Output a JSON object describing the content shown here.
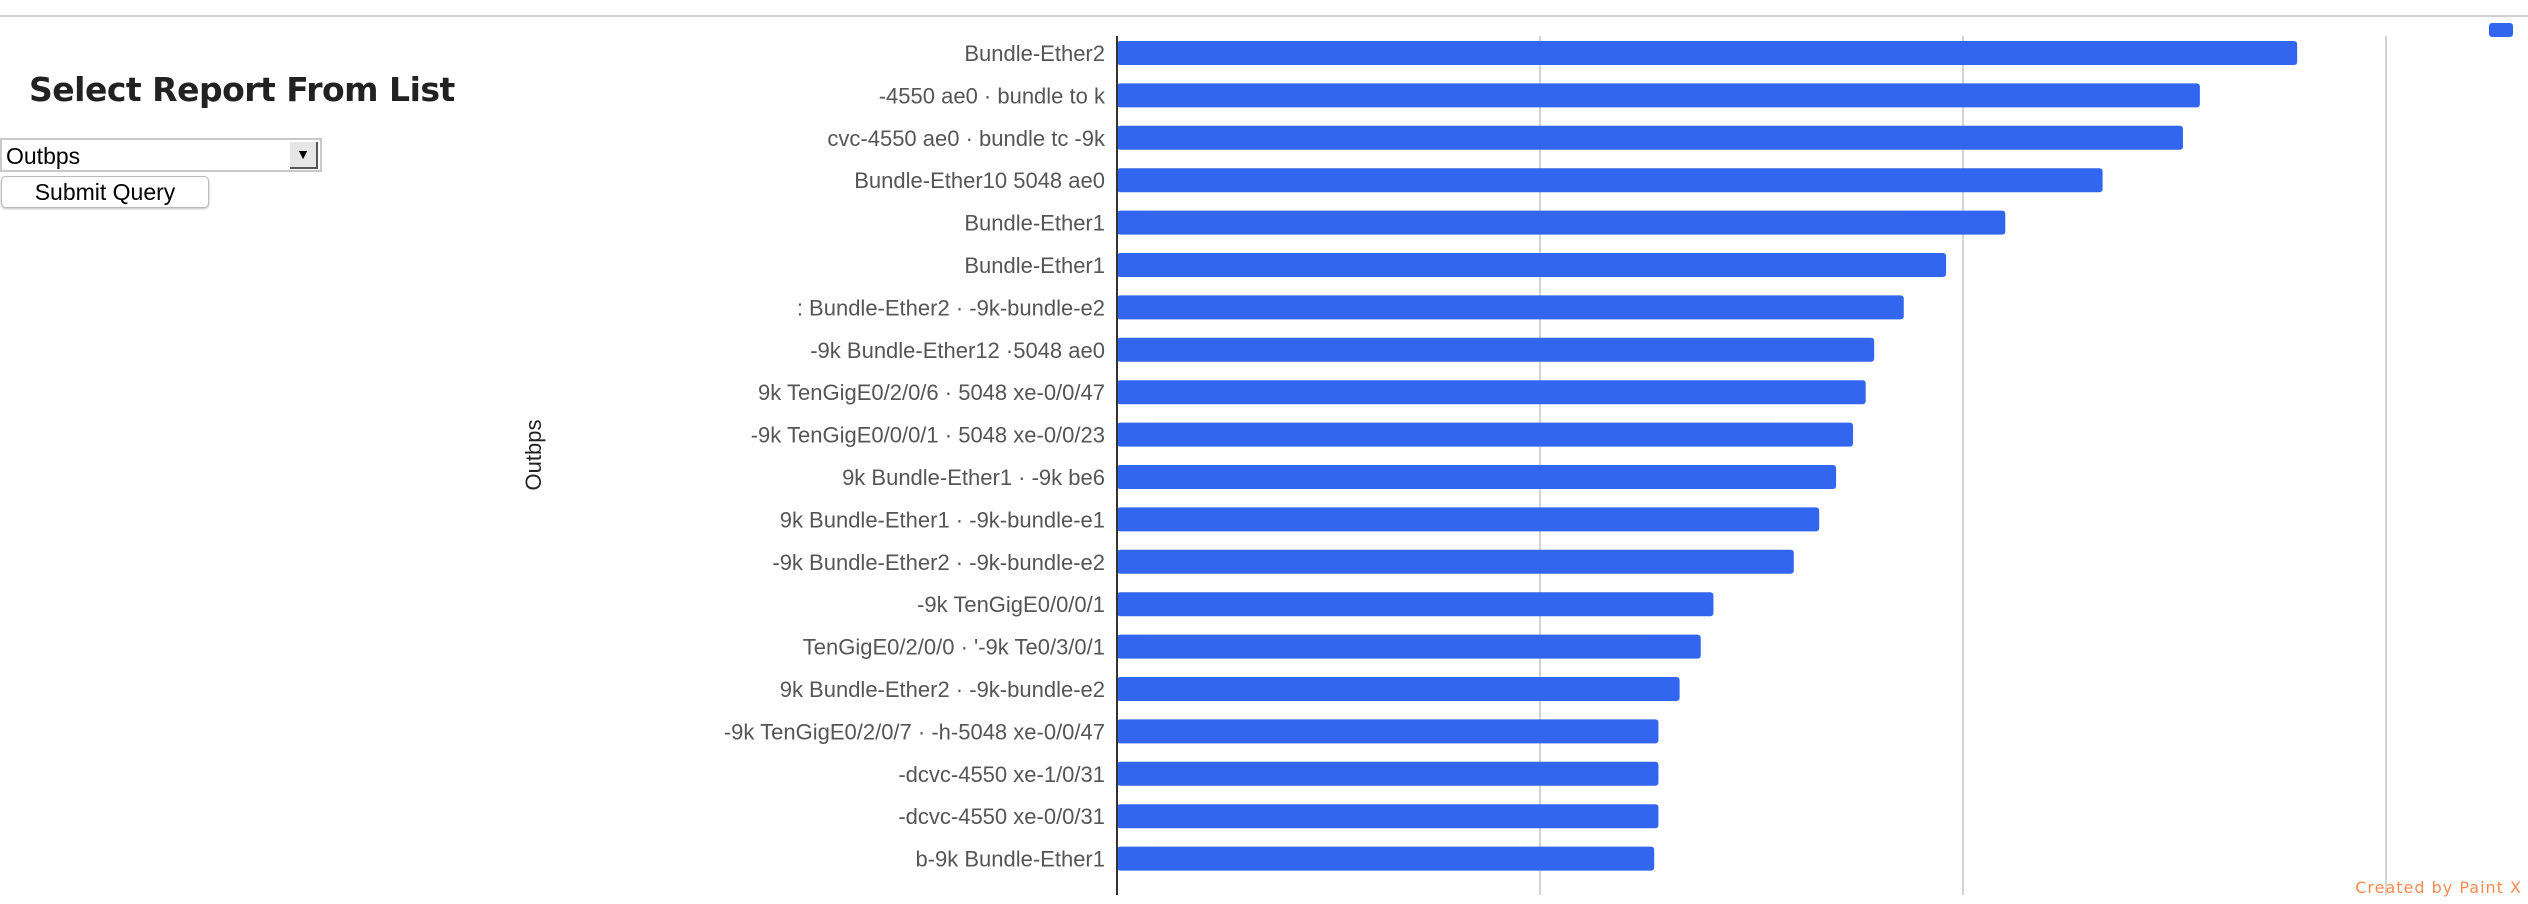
{
  "form": {
    "heading": "Select Report From List",
    "select_value": "Outbps",
    "submit_label": "Submit Query"
  },
  "colors": {
    "bar": "#3366ee",
    "grid": "#d4d4d4",
    "label": "#555555",
    "credit": "#ff8a50"
  },
  "credit": "Created by Paint X",
  "chart_data": {
    "type": "bar",
    "orientation": "horizontal",
    "ylabel": "Outbps",
    "xlabel": "",
    "xlim": [
      0,
      3
    ],
    "grid": true,
    "legend": "top-right",
    "series": [
      {
        "name": "",
        "color": "#3366ee"
      }
    ],
    "categories": [
      "Bundle-Ether2",
      "-4550 ae0 · bundle to        k",
      "cvc-4550 ae0 · bundle tc      -9k",
      "Bundle-Ether10          5048 ae0",
      "Bundle-Ether1",
      "Bundle-Ether1",
      ": Bundle-Ether2 ·      -9k-bundle-e2",
      "-9k Bundle-Ether12         ·5048 ae0",
      "9k TenGigE0/2/0/6 ·         5048 xe-0/0/47",
      "-9k TenGigE0/0/0/1 ·          5048 xe-0/0/23",
      "9k Bundle-Ether1 ·       -9k be6",
      "9k Bundle-Ether1 ·       -9k-bundle-e1",
      "-9k Bundle-Ether2 ·        -9k-bundle-e2",
      "-9k TenGigE0/0/0/1",
      "TenGigE0/2/0/0 ·        '-9k Te0/3/0/1",
      "9k Bundle-Ether2 ·       -9k-bundle-e2",
      "-9k TenGigE0/2/0/7 ·       -h-5048 xe-0/0/47",
      "-dcvc-4550 xe-1/0/31",
      "-dcvc-4550 xe-0/0/31",
      "b-9k Bundle-Ether1"
    ],
    "values": [
      2.79,
      2.56,
      2.52,
      2.33,
      2.1,
      1.96,
      1.86,
      1.79,
      1.77,
      1.74,
      1.7,
      1.66,
      1.6,
      1.41,
      1.38,
      1.33,
      1.28,
      1.28,
      1.28,
      1.27
    ]
  }
}
